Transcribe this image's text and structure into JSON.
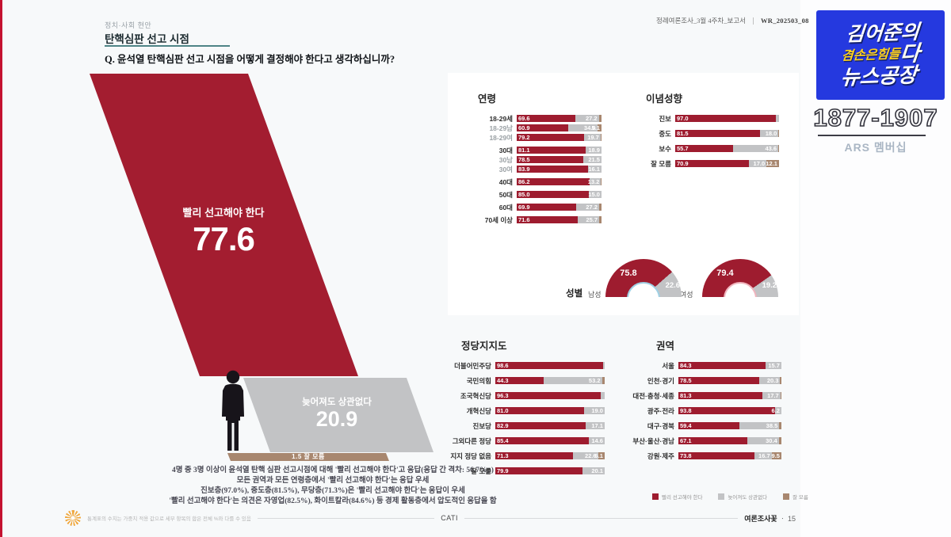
{
  "palette": {
    "red": "#9e1c2f",
    "red_big": "#a31d30",
    "gray": "#c2c3c5",
    "gray_big": "#c2c3c5",
    "brown": "#a8876f",
    "blue": "#2539df",
    "yellow": "#ffd21f",
    "teal": "#4e8486",
    "flower": "#f0a73c"
  },
  "header": {
    "eyebrow": "정치·사회 현안",
    "title": "탄핵심판 선고 시점",
    "question": "Q. 윤석열 탄핵심판 선고 시점을 어떻게 결정해야 한다고 생각하십니까?",
    "doc_label": "정례여론조사_3월 4주차_보고서",
    "doc_code": "WR_202503_08"
  },
  "summary_lines": [
    "4명 중 3명 이상이 윤석열 탄핵 심판 선고시점에 대해 '빨리 선고해야 한다'고 응답(응답 간 격차: 56.7%p)",
    "모든 권역과 모든 연령층에서 '빨리 선고해야 한다'는 응답 우세",
    "진보층(97.0%), 중도층(81.5%), 무당층(71.3%)은 '빨리 선고해야 한다'는 응답이 우세",
    "'빨리 선고해야 한다'는 의견은 자영업(82.5%), 화이트칼라(84.6%) 등 경제 활동층에서 압도적인 응답을 함"
  ],
  "legend": {
    "items": [
      {
        "label": "빨리 선고해야 한다",
        "c": "red"
      },
      {
        "label": "늦어져도 상관없다",
        "c": "gray"
      },
      {
        "label": "잘 모름",
        "c": "brown"
      }
    ]
  },
  "footer": {
    "note": "통계표의 수치는 가중치 적용 값으로 세부 항목의 합은 전체 %와 다를 수 있음",
    "method": "CATI",
    "source": "여론조사꽃",
    "separator": "ㆍ",
    "page": "15"
  },
  "sidebar": {
    "logo_top": "김어준의",
    "logo_mid": "겸손은힘들",
    "logo_mid_emph": "다",
    "logo_bottom": "뉴스공장",
    "phone": "1877-1907",
    "membership": "ARS 멤버십"
  },
  "chart_data": [
    {
      "id": "overall",
      "type": "bar",
      "title": "탄핵심판 선고 시점 응답",
      "categories": [
        "빨리 선고해야 한다",
        "늦어져도 상관없다",
        "잘 모름"
      ],
      "values": [
        77.6,
        20.9,
        1.5
      ],
      "display": {
        "top_value": "77.6",
        "second_value": "20.9",
        "dk_line": "1.5  잘 모름"
      }
    },
    {
      "id": "age",
      "type": "bar",
      "stacked": true,
      "title": "연령",
      "xlim": [
        0,
        100
      ],
      "series_names": [
        "빨리 선고해야 한다",
        "늦어져도 상관없다",
        "잘 모름"
      ],
      "rows": [
        {
          "label": "18-29세",
          "segs": [
            {
              "v": 69.6,
              "t": "69.6",
              "c": "red"
            },
            {
              "v": 27.2,
              "t": "27.2",
              "c": "gray"
            },
            {
              "v": 3.2,
              "t": "",
              "c": "brown"
            }
          ]
        },
        {
          "label": "18-29남",
          "sub": 1,
          "segs": [
            {
              "v": 60.9,
              "t": "60.9",
              "c": "red"
            },
            {
              "v": 34.0,
              "t": "34.0",
              "c": "gray"
            },
            {
              "v": 5.1,
              "t": "5.1",
              "c": "brown"
            }
          ]
        },
        {
          "label": "18-29여",
          "sub": 1,
          "segs": [
            {
              "v": 79.2,
              "t": "79.2",
              "c": "red"
            },
            {
              "v": 19.7,
              "t": "19.7",
              "c": "gray"
            },
            {
              "v": 1.1,
              "t": "",
              "c": "brown"
            }
          ]
        },
        {
          "label": "30대",
          "gap": 1,
          "segs": [
            {
              "v": 81.1,
              "t": "81.1",
              "c": "red"
            },
            {
              "v": 18.9,
              "t": "18.9",
              "c": "gray"
            }
          ]
        },
        {
          "label": "30남",
          "sub": 1,
          "segs": [
            {
              "v": 78.5,
              "t": "78.5",
              "c": "red"
            },
            {
              "v": 21.5,
              "t": "21.5",
              "c": "gray"
            }
          ]
        },
        {
          "label": "30여",
          "sub": 1,
          "segs": [
            {
              "v": 83.9,
              "t": "83.9",
              "c": "red"
            },
            {
              "v": 16.1,
              "t": "16.1",
              "c": "gray"
            }
          ]
        },
        {
          "label": "40대",
          "gap": 1,
          "segs": [
            {
              "v": 86.2,
              "t": "86.2",
              "c": "red"
            },
            {
              "v": 13.2,
              "t": "13.2",
              "c": "gray"
            },
            {
              "v": 0.6,
              "t": "",
              "c": "brown"
            }
          ]
        },
        {
          "label": "50대",
          "gap": 1,
          "segs": [
            {
              "v": 85.0,
              "t": "85.0",
              "c": "red"
            },
            {
              "v": 15.0,
              "t": "15.0",
              "c": "gray"
            }
          ]
        },
        {
          "label": "60대",
          "gap": 1,
          "segs": [
            {
              "v": 69.9,
              "t": "69.9",
              "c": "red"
            },
            {
              "v": 27.2,
              "t": "27.2",
              "c": "gray"
            },
            {
              "v": 2.9,
              "t": "",
              "c": "brown"
            }
          ]
        },
        {
          "label": "70세 이상",
          "gap": 1,
          "segs": [
            {
              "v": 71.6,
              "t": "71.6",
              "c": "red"
            },
            {
              "v": 25.7,
              "t": "25.7",
              "c": "gray"
            },
            {
              "v": 2.7,
              "t": "",
              "c": "brown"
            }
          ]
        }
      ]
    },
    {
      "id": "ideology",
      "type": "bar",
      "stacked": true,
      "title": "이념성향",
      "xlim": [
        0,
        100
      ],
      "series_names": [
        "빨리 선고해야 한다",
        "늦어져도 상관없다",
        "잘 모름"
      ],
      "rows": [
        {
          "label": "진보",
          "segs": [
            {
              "v": 97.0,
              "t": "97.0",
              "c": "red"
            },
            {
              "v": 3.0,
              "t": "",
              "c": "gray"
            }
          ]
        },
        {
          "label": "중도",
          "segs": [
            {
              "v": 81.5,
              "t": "81.5",
              "c": "red"
            },
            {
              "v": 18.0,
              "t": "18.0",
              "c": "gray"
            },
            {
              "v": 0.5,
              "t": "",
              "c": "brown"
            }
          ]
        },
        {
          "label": "보수",
          "segs": [
            {
              "v": 55.7,
              "t": "55.7",
              "c": "red"
            },
            {
              "v": 43.6,
              "t": "43.6",
              "c": "gray"
            },
            {
              "v": 0.7,
              "t": "",
              "c": "brown"
            }
          ]
        },
        {
          "label": "잘 모름",
          "segs": [
            {
              "v": 70.9,
              "t": "70.9",
              "c": "red"
            },
            {
              "v": 17.0,
              "t": "17.0",
              "c": "gray"
            },
            {
              "v": 12.1,
              "t": "12.1",
              "c": "brown"
            }
          ]
        }
      ]
    },
    {
      "id": "gender",
      "type": "donut",
      "title": "성별",
      "donuts": [
        {
          "label": "남성",
          "fast": 75.8,
          "late": 22.6,
          "fast_label": "75.8",
          "late_label": "22.6",
          "ring": "#9fd0e4"
        },
        {
          "label": "여성",
          "fast": 79.4,
          "late": 19.2,
          "fast_label": "79.4",
          "late_label": "19.2",
          "ring": "#f0b4bd"
        }
      ]
    },
    {
      "id": "party",
      "type": "bar",
      "stacked": true,
      "title": "정당지지도",
      "xlim": [
        0,
        100
      ],
      "series_names": [
        "빨리 선고해야 한다",
        "늦어져도 상관없다",
        "잘 모름"
      ],
      "rows": [
        {
          "label": "더불어민주당",
          "segs": [
            {
              "v": 98.6,
              "t": "98.6",
              "c": "red"
            },
            {
              "v": 1.4,
              "t": "",
              "c": "gray"
            }
          ]
        },
        {
          "label": "국민의힘",
          "segs": [
            {
              "v": 44.3,
              "t": "44.3",
              "c": "red"
            },
            {
              "v": 53.2,
              "t": "53.2",
              "c": "gray"
            },
            {
              "v": 2.5,
              "t": "",
              "c": "brown"
            }
          ]
        },
        {
          "label": "조국혁신당",
          "segs": [
            {
              "v": 96.3,
              "t": "96.3",
              "c": "red"
            },
            {
              "v": 3.7,
              "t": "",
              "c": "gray"
            }
          ]
        },
        {
          "label": "개혁신당",
          "segs": [
            {
              "v": 81.0,
              "t": "81.0",
              "c": "red"
            },
            {
              "v": 19.0,
              "t": "19.0",
              "c": "gray"
            }
          ]
        },
        {
          "label": "진보당",
          "segs": [
            {
              "v": 82.9,
              "t": "82.9",
              "c": "red"
            },
            {
              "v": 17.1,
              "t": "17.1",
              "c": "gray"
            }
          ]
        },
        {
          "label": "그외다른 정당",
          "segs": [
            {
              "v": 85.4,
              "t": "85.4",
              "c": "red"
            },
            {
              "v": 14.6,
              "t": "14.6",
              "c": "gray"
            }
          ]
        },
        {
          "label": "지지 정당 없음",
          "segs": [
            {
              "v": 71.3,
              "t": "71.3",
              "c": "red"
            },
            {
              "v": 22.6,
              "t": "22.6",
              "c": "gray"
            },
            {
              "v": 6.1,
              "t": "6.1",
              "c": "brown"
            }
          ]
        },
        {
          "label": "잘 모름",
          "segs": [
            {
              "v": 79.9,
              "t": "79.9",
              "c": "red"
            },
            {
              "v": 20.1,
              "t": "20.1",
              "c": "gray"
            }
          ]
        }
      ]
    },
    {
      "id": "region",
      "type": "bar",
      "stacked": true,
      "title": "권역",
      "xlim": [
        0,
        100
      ],
      "series_names": [
        "빨리 선고해야 한다",
        "늦어져도 상관없다",
        "잘 모름"
      ],
      "rows": [
        {
          "label": "서울",
          "segs": [
            {
              "v": 84.3,
              "t": "84.3",
              "c": "red"
            },
            {
              "v": 15.7,
              "t": "15.7",
              "c": "gray"
            }
          ]
        },
        {
          "label": "인천·경기",
          "segs": [
            {
              "v": 78.5,
              "t": "78.5",
              "c": "red"
            },
            {
              "v": 20.3,
              "t": "20.3",
              "c": "gray"
            },
            {
              "v": 1.2,
              "t": "",
              "c": "brown"
            }
          ]
        },
        {
          "label": "대전·충청·세종",
          "segs": [
            {
              "v": 81.3,
              "t": "81.3",
              "c": "red"
            },
            {
              "v": 17.7,
              "t": "17.7",
              "c": "gray"
            },
            {
              "v": 1.0,
              "t": "",
              "c": "brown"
            }
          ]
        },
        {
          "label": "광주·전라",
          "segs": [
            {
              "v": 93.8,
              "t": "93.8",
              "c": "red"
            },
            {
              "v": 6.2,
              "t": "6.2",
              "c": "gray"
            }
          ]
        },
        {
          "label": "대구·경북",
          "segs": [
            {
              "v": 59.4,
              "t": "59.4",
              "c": "red"
            },
            {
              "v": 38.5,
              "t": "38.5",
              "c": "gray"
            },
            {
              "v": 2.1,
              "t": "",
              "c": "brown"
            }
          ]
        },
        {
          "label": "부산·울산·경남",
          "segs": [
            {
              "v": 67.1,
              "t": "67.1",
              "c": "red"
            },
            {
              "v": 30.4,
              "t": "30.4",
              "c": "gray"
            },
            {
              "v": 2.5,
              "t": "",
              "c": "brown"
            }
          ]
        },
        {
          "label": "강원·제주",
          "segs": [
            {
              "v": 73.8,
              "t": "73.8",
              "c": "red"
            },
            {
              "v": 16.7,
              "t": "16.7",
              "c": "gray"
            },
            {
              "v": 9.5,
              "t": "9.5",
              "c": "brown"
            }
          ]
        }
      ]
    }
  ]
}
